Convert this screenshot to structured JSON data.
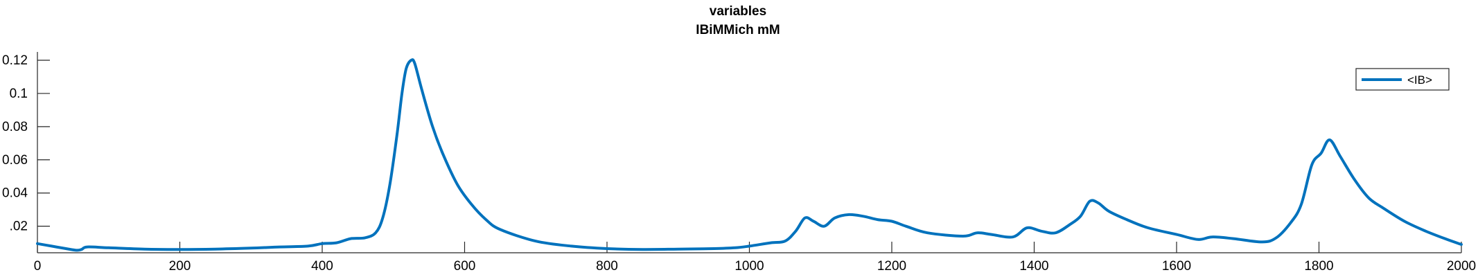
{
  "chart_data": {
    "type": "line",
    "title_line1": "variables",
    "title_line2": "IBiMMich mM",
    "xlabel": "",
    "ylabel": "",
    "xlim": [
      0,
      2000
    ],
    "ylim": [
      0.004,
      0.125
    ],
    "x_ticks": [
      0,
      200,
      400,
      600,
      800,
      1000,
      1200,
      1400,
      1600,
      1800,
      2000
    ],
    "y_ticks": [
      0.02,
      0.04,
      0.06,
      0.08,
      0.1,
      0.12
    ],
    "y_tick_labels": [
      ".02",
      "0.04",
      "0.06",
      "0.08",
      "0.1",
      "0.12"
    ],
    "grid": false,
    "legend_position": "top-right",
    "series": [
      {
        "name": "<IB>",
        "color": "#0072BD",
        "points": [
          [
            0,
            0.0095
          ],
          [
            20,
            0.008
          ],
          [
            40,
            0.0065
          ],
          [
            55,
            0.0055
          ],
          [
            62,
            0.006
          ],
          [
            70,
            0.0075
          ],
          [
            100,
            0.007
          ],
          [
            150,
            0.0062
          ],
          [
            200,
            0.006
          ],
          [
            250,
            0.0062
          ],
          [
            300,
            0.0068
          ],
          [
            340,
            0.0075
          ],
          [
            380,
            0.008
          ],
          [
            400,
            0.0095
          ],
          [
            420,
            0.01
          ],
          [
            440,
            0.0125
          ],
          [
            460,
            0.013
          ],
          [
            475,
            0.016
          ],
          [
            485,
            0.025
          ],
          [
            495,
            0.045
          ],
          [
            505,
            0.075
          ],
          [
            512,
            0.1
          ],
          [
            518,
            0.115
          ],
          [
            525,
            0.12
          ],
          [
            530,
            0.118
          ],
          [
            540,
            0.102
          ],
          [
            555,
            0.08
          ],
          [
            570,
            0.063
          ],
          [
            590,
            0.045
          ],
          [
            610,
            0.033
          ],
          [
            630,
            0.024
          ],
          [
            650,
            0.018
          ],
          [
            700,
            0.011
          ],
          [
            750,
            0.008
          ],
          [
            800,
            0.0065
          ],
          [
            850,
            0.006
          ],
          [
            900,
            0.0062
          ],
          [
            950,
            0.0065
          ],
          [
            980,
            0.007
          ],
          [
            1000,
            0.008
          ],
          [
            1030,
            0.01
          ],
          [
            1050,
            0.011
          ],
          [
            1065,
            0.017
          ],
          [
            1078,
            0.025
          ],
          [
            1090,
            0.023
          ],
          [
            1105,
            0.02
          ],
          [
            1120,
            0.025
          ],
          [
            1140,
            0.027
          ],
          [
            1160,
            0.026
          ],
          [
            1180,
            0.024
          ],
          [
            1200,
            0.023
          ],
          [
            1220,
            0.02
          ],
          [
            1250,
            0.016
          ],
          [
            1300,
            0.014
          ],
          [
            1320,
            0.016
          ],
          [
            1340,
            0.015
          ],
          [
            1370,
            0.0135
          ],
          [
            1390,
            0.019
          ],
          [
            1410,
            0.017
          ],
          [
            1430,
            0.016
          ],
          [
            1450,
            0.021
          ],
          [
            1465,
            0.026
          ],
          [
            1478,
            0.035
          ],
          [
            1490,
            0.034
          ],
          [
            1505,
            0.029
          ],
          [
            1530,
            0.024
          ],
          [
            1560,
            0.019
          ],
          [
            1600,
            0.015
          ],
          [
            1630,
            0.012
          ],
          [
            1650,
            0.0135
          ],
          [
            1680,
            0.0125
          ],
          [
            1720,
            0.0105
          ],
          [
            1740,
            0.013
          ],
          [
            1760,
            0.022
          ],
          [
            1775,
            0.033
          ],
          [
            1790,
            0.057
          ],
          [
            1803,
            0.064
          ],
          [
            1815,
            0.072
          ],
          [
            1830,
            0.062
          ],
          [
            1850,
            0.048
          ],
          [
            1870,
            0.037
          ],
          [
            1890,
            0.031
          ],
          [
            1920,
            0.023
          ],
          [
            1950,
            0.017
          ],
          [
            1980,
            0.012
          ],
          [
            2000,
            0.009
          ]
        ]
      }
    ]
  }
}
